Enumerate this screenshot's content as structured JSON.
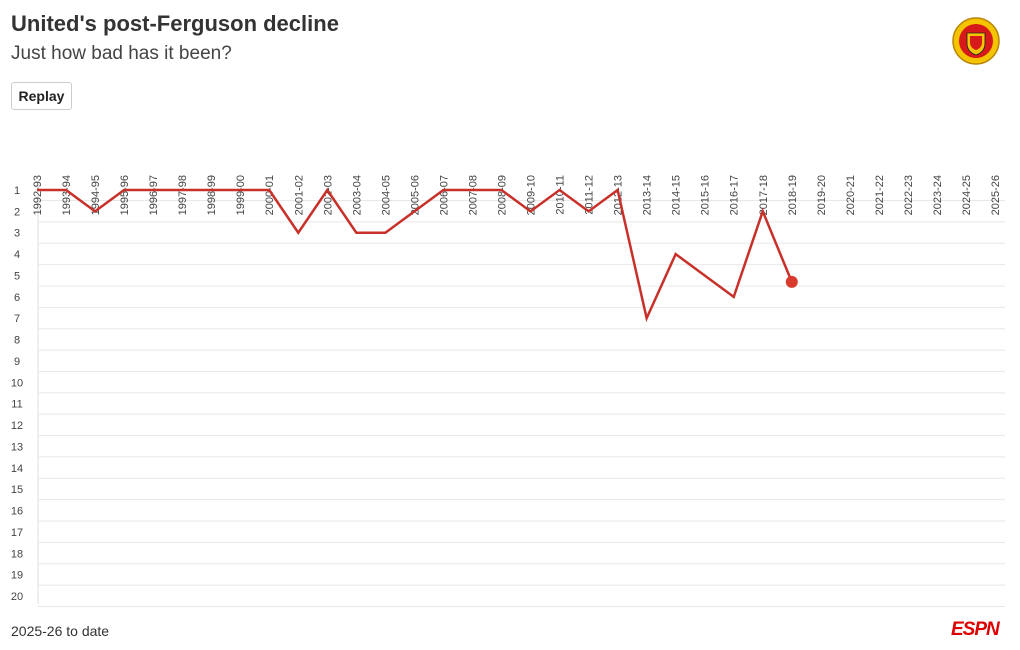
{
  "title": "United's post-Ferguson decline",
  "subtitle": "Just how bad has it been?",
  "replay_button": "Replay",
  "chart_data": {
    "type": "line",
    "categories": [
      "1992-93",
      "1993-94",
      "1994-95",
      "1995-96",
      "1996-97",
      "1997-98",
      "1998-99",
      "1999-00",
      "2000-01",
      "2001-02",
      "2002-03",
      "2003-04",
      "2004-05",
      "2005-06",
      "2006-07",
      "2007-08",
      "2008-09",
      "2009-10",
      "2010-11",
      "2011-12",
      "2012-13",
      "2013-14",
      "2014-15",
      "2015-16",
      "2016-17",
      "2017-18",
      "2018-19",
      "2019-20",
      "2020-21",
      "2021-22",
      "2022-23",
      "2023-24",
      "2024-25",
      "2025-26"
    ],
    "series": [
      {
        "color": "#c8302a",
        "values": [
          1,
          1,
          2,
          1,
          1,
          1,
          1,
          1,
          1,
          3,
          1,
          3,
          3,
          2,
          1,
          1,
          1,
          2,
          1,
          2,
          1,
          7,
          4,
          5,
          6,
          2,
          5.3,
          null,
          null,
          null,
          null,
          null,
          null,
          null
        ]
      }
    ],
    "ylim": [
      1,
      20
    ],
    "y_inverted": true,
    "yticks": [
      1,
      2,
      3,
      4,
      5,
      6,
      7,
      8,
      9,
      10,
      11,
      12,
      13,
      14,
      15,
      16,
      17,
      18,
      19,
      20
    ],
    "grid": true,
    "last_point_marker": true
  },
  "note": "2025-26 to date",
  "logo": "ESPN"
}
